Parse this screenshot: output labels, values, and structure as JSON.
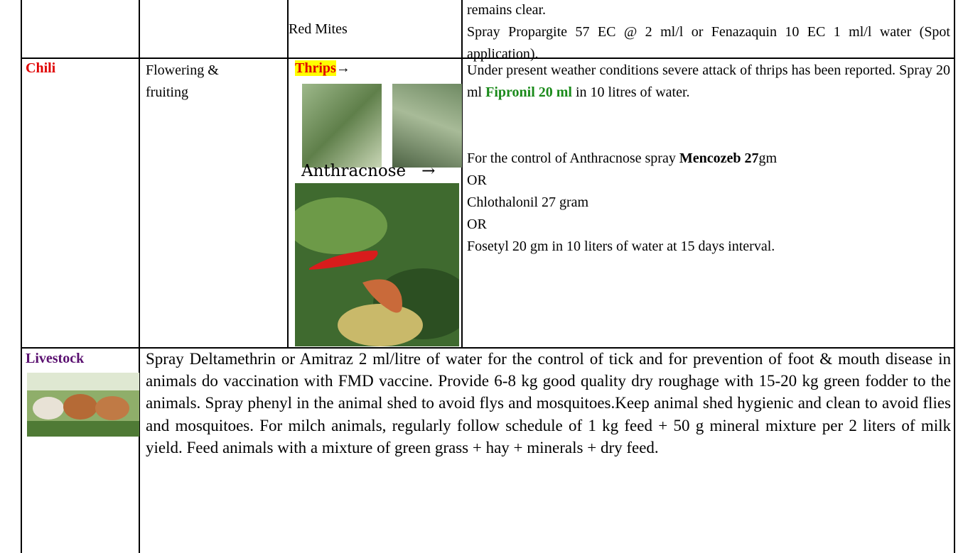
{
  "table": {
    "rows": [
      {
        "pest": "Red Mites",
        "advisory": [
          "remains clear.",
          "Spray Propargite 57 EC @ 2 ml/l or Fenazaquin 10 EC 1 ml/l water (Spot application)."
        ]
      },
      {
        "crop": "Chili",
        "stage": "Flowering & fruiting",
        "pests": [
          {
            "name": "Thrips",
            "arrow": "→"
          },
          {
            "name": "Anthracnose",
            "arrow": "→"
          }
        ],
        "advisory": {
          "thrips": [
            "Under present weather conditions severe attack of thrips has been reported. Spray 20 ml",
            "Fipronil 20 ml",
            "in 10 litres of water."
          ],
          "anthracnose": [
            "For the control of Anthracnose spray",
            "Mencozeb 27",
            "gm"
          ],
          "options": [
            "OR",
            "Chlothalonil 27 gram",
            "OR",
            "Fosetyl 20 gm in 10 liters of water at 15 days interval."
          ]
        }
      },
      {
        "crop": "Livestock",
        "advisory": "Spray Deltamethrin or Amitraz 2 ml/litre of water for the control of tick and for prevention of foot & mouth disease in animals do vaccination with FMD vaccine. Provide 6-8 kg good quality dry roughage with 15-20 kg green fodder to the animals. Spray phenyl in the animal shed to avoid flys and mosquitoes.Keep animal shed hygienic and clean to avoid flies and mosquitoes. For milch animals, regularly follow schedule of 1 kg feed + 50 g mineral mixture per 2 liters of milk yield. Feed animals with a mixture of green grass + hay + minerals + dry feed."
      }
    ]
  }
}
